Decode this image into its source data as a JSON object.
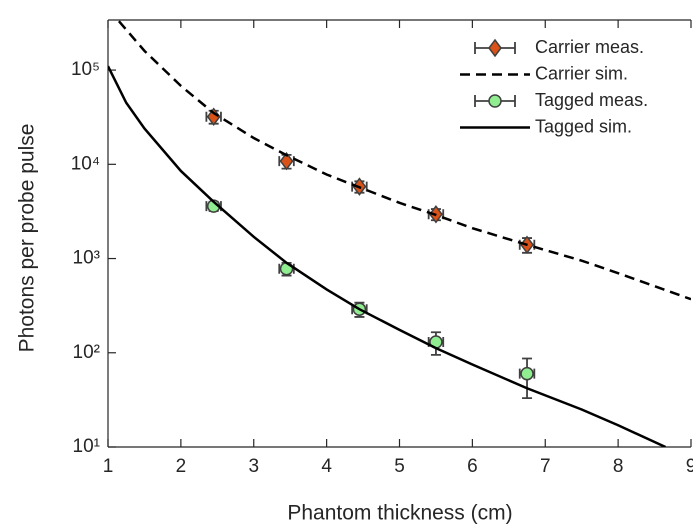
{
  "chart_data": {
    "type": "line",
    "xlabel": "Phantom thickness (cm)",
    "ylabel": "Photons per probe pulse",
    "xlim": [
      1,
      9
    ],
    "xticks": [
      1,
      2,
      3,
      4,
      5,
      6,
      7,
      8,
      9
    ],
    "ylim": [
      10,
      340000
    ],
    "yscale": "log",
    "yticks": [
      {
        "value": 10,
        "label": "10¹"
      },
      {
        "value": 100,
        "label": "10²"
      },
      {
        "value": 1000,
        "label": "10³"
      },
      {
        "value": 10000,
        "label": "10⁴"
      },
      {
        "value": 100000,
        "label": "10⁵"
      }
    ],
    "legend": "upper right",
    "series": [
      {
        "name": "Carrier meas.",
        "color": "#d95319",
        "marker": "diamond",
        "x": [
          2.45,
          3.45,
          4.45,
          5.5,
          6.75
        ],
        "values": [
          32000,
          10800,
          5800,
          2950,
          1400
        ],
        "y_err": [
          5000,
          1800,
          800,
          400,
          250
        ],
        "x_err": [
          0.1,
          0.1,
          0.1,
          0.1,
          0.1
        ]
      },
      {
        "name": "Carrier sim.",
        "color": "#000000",
        "style": "dashed",
        "x": [
          1.15,
          1.5,
          2,
          2.45,
          3,
          3.45,
          4,
          4.45,
          5,
          5.5,
          6,
          6.75,
          7.5,
          8,
          9
        ],
        "values": [
          330000,
          160000,
          68000,
          35000,
          19000,
          12500,
          7800,
          5700,
          3900,
          2900,
          2100,
          1400,
          950,
          700,
          370
        ]
      },
      {
        "name": "Tagged meas.",
        "color": "#90ee90",
        "marker": "circle",
        "x": [
          2.45,
          3.45,
          4.45,
          5.5,
          6.75
        ],
        "values": [
          3600,
          780,
          290,
          130,
          60
        ],
        "y_err": [
          400,
          120,
          50,
          35,
          27
        ],
        "x_err": [
          0.1,
          0.1,
          0.1,
          0.1,
          0.1
        ]
      },
      {
        "name": "Tagged sim.",
        "color": "#000000",
        "style": "solid",
        "x": [
          1,
          1.25,
          1.5,
          2,
          2.45,
          3,
          3.45,
          4,
          4.45,
          5,
          5.5,
          6,
          6.75,
          7.5,
          8,
          8.65
        ],
        "values": [
          110000,
          45000,
          24000,
          8500,
          4000,
          1700,
          900,
          470,
          290,
          175,
          112,
          75,
          42,
          25,
          17,
          10
        ]
      }
    ]
  }
}
